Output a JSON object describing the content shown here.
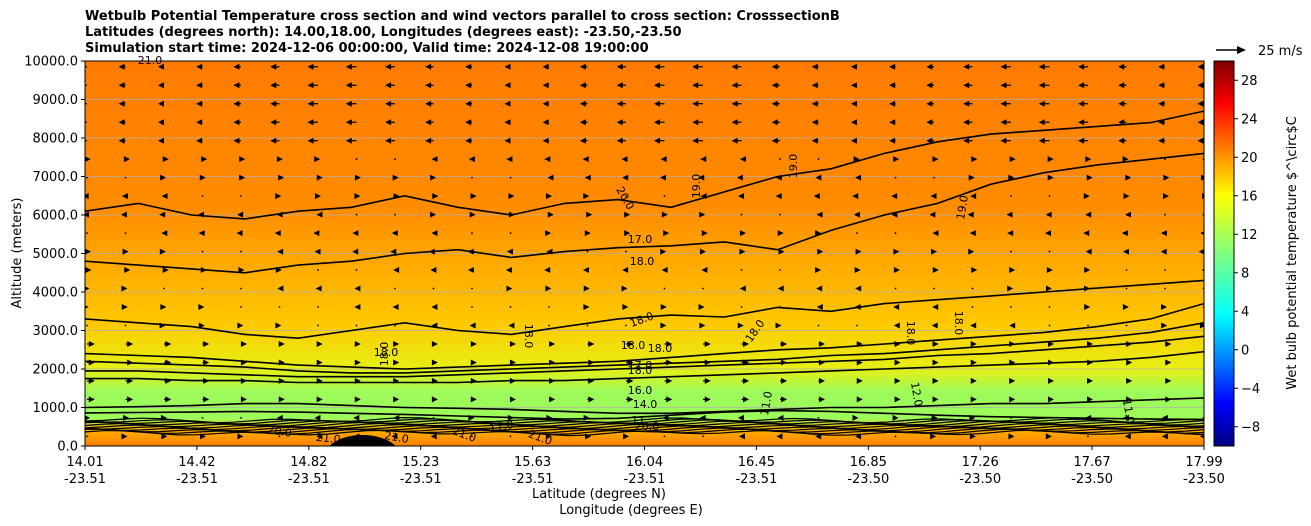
{
  "chart_data": {
    "type": "heatmap",
    "title_lines": [
      "Wetbulb Potential Temperature cross section and wind vectors parallel to cross section: CrosssectionB",
      "Latitudes (degrees north): 14.00,18.00, Longitudes (degrees east): -23.50,-23.50",
      "Simulation start time: 2024-12-06 00:00:00, Valid time: 2024-12-08 19:00:00"
    ],
    "ylabel": "Altitude (meters)",
    "xlabel_lat": "Latitude (degrees N)",
    "xlabel_lon": "Longitude (degrees E)",
    "ylim": [
      0,
      10000
    ],
    "yticks": [
      "0.0",
      "1000.0",
      "2000.0",
      "3000.0",
      "4000.0",
      "5000.0",
      "6000.0",
      "7000.0",
      "8000.0",
      "9000.0",
      "10000.0"
    ],
    "xticks": [
      {
        "lat": "14.01",
        "lon": "-23.51"
      },
      {
        "lat": "14.42",
        "lon": "-23.51"
      },
      {
        "lat": "14.82",
        "lon": "-23.51"
      },
      {
        "lat": "15.23",
        "lon": "-23.51"
      },
      {
        "lat": "15.63",
        "lon": "-23.51"
      },
      {
        "lat": "16.04",
        "lon": "-23.51"
      },
      {
        "lat": "16.45",
        "lon": "-23.51"
      },
      {
        "lat": "16.85",
        "lon": "-23.50"
      },
      {
        "lat": "17.26",
        "lon": "-23.50"
      },
      {
        "lat": "17.67",
        "lon": "-23.50"
      },
      {
        "lat": "17.99",
        "lon": "-23.50"
      }
    ],
    "colorbar": {
      "label": "Wet bulb potential temperature $^\\circ$C",
      "range": [
        -10,
        30
      ],
      "ticks": [
        "−8",
        "−4",
        "0",
        "4",
        "8",
        "12",
        "16",
        "20",
        "24",
        "28"
      ],
      "colormap": "jet"
    },
    "quiver_key": "25 m/s",
    "grid": "horizontal",
    "contour_labels": [
      {
        "text": "21.0"
      },
      {
        "text": "20.0"
      },
      {
        "text": "19.0"
      },
      {
        "text": "19.0"
      },
      {
        "text": "19.0"
      },
      {
        "text": "17.0"
      },
      {
        "text": "18.0"
      },
      {
        "text": "18.0"
      },
      {
        "text": "18.0"
      },
      {
        "text": "18.0"
      },
      {
        "text": "18.0"
      },
      {
        "text": "18.0"
      },
      {
        "text": "18.0"
      },
      {
        "text": "18.0"
      },
      {
        "text": "18.0"
      },
      {
        "text": "18.0"
      },
      {
        "text": "18.0"
      },
      {
        "text": "17.0"
      },
      {
        "text": "16.0"
      },
      {
        "text": "14.0"
      },
      {
        "text": "12.0"
      },
      {
        "text": "11.0"
      },
      {
        "text": "11.0"
      },
      {
        "text": "11."
      },
      {
        "text": "20.0"
      },
      {
        "text": "21.0"
      },
      {
        "text": "21.0"
      },
      {
        "text": "21.0"
      },
      {
        "text": "21.0"
      },
      {
        "text": "20.0"
      },
      {
        "text": "17.0"
      }
    ],
    "contour_levels": [
      {
        "level": 20,
        "alts": [
          6100,
          6300,
          6000,
          5900,
          6100,
          6200,
          6500,
          6200,
          6000,
          6300,
          6400,
          6200,
          6600,
          7000,
          7200,
          7600,
          7900,
          8100,
          8200,
          8300,
          8400,
          8700
        ]
      },
      {
        "level": 19,
        "alts": [
          4800,
          4700,
          4600,
          4500,
          4700,
          4800,
          5000,
          5100,
          4900,
          5050,
          5150,
          5200,
          5300,
          5100,
          5600,
          6000,
          6300,
          6800,
          7100,
          7300,
          7450,
          7600
        ]
      },
      {
        "level": 18,
        "alts": [
          3300,
          3200,
          3100,
          2900,
          2800,
          3000,
          3200,
          3000,
          2900,
          3100,
          3300,
          3400,
          3350,
          3600,
          3500,
          3700,
          3800,
          3900,
          4000,
          4100,
          4200,
          4300
        ]
      },
      {
        "level": 17,
        "alts": [
          2400,
          2350,
          2300,
          2200,
          2100,
          2050,
          2000,
          2050,
          2100,
          2150,
          2200,
          2300,
          2400,
          2500,
          2550,
          2650,
          2750,
          2850,
          2950,
          3100,
          3300,
          3700
        ]
      },
      {
        "level": 16,
        "alts": [
          2200,
          2150,
          2100,
          2050,
          1950,
          1900,
          1900,
          1950,
          2000,
          2050,
          2100,
          2150,
          2200,
          2250,
          2350,
          2400,
          2500,
          2600,
          2700,
          2800,
          2950,
          3200
        ]
      },
      {
        "level": 15,
        "alts": [
          1950,
          1950,
          1900,
          1850,
          1800,
          1800,
          1800,
          1850,
          1900,
          1950,
          2000,
          2050,
          2100,
          2150,
          2200,
          2250,
          2350,
          2400,
          2500,
          2600,
          2700,
          2850
        ]
      },
      {
        "level": 14,
        "alts": [
          1750,
          1750,
          1700,
          1700,
          1650,
          1650,
          1650,
          1650,
          1700,
          1700,
          1750,
          1800,
          1850,
          1900,
          1950,
          2000,
          2050,
          2100,
          2150,
          2200,
          2300,
          2450
        ]
      },
      {
        "level": 12,
        "alts": [
          1000,
          1020,
          1050,
          1100,
          1100,
          1050,
          1000,
          980,
          950,
          900,
          850,
          850,
          900,
          950,
          1000,
          1000,
          1050,
          1100,
          1100,
          1150,
          1200,
          1250
        ]
      },
      {
        "level": 11,
        "alts": [
          860,
          870,
          880,
          900,
          880,
          850,
          820,
          780,
          740,
          700,
          720,
          800,
          880,
          920,
          900,
          850,
          800,
          760,
          740,
          720,
          700,
          690
        ]
      }
    ]
  }
}
